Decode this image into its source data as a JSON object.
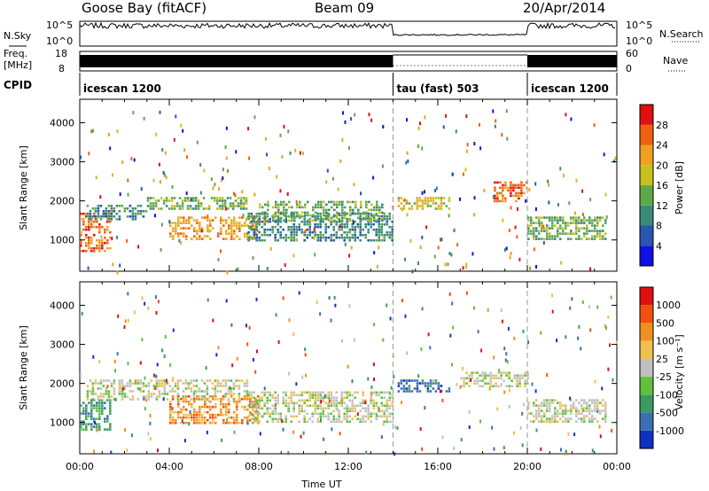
{
  "header": {
    "station": "Goose Bay (fitACF)",
    "beam": "Beam 09",
    "date": "20/Apr/2014"
  },
  "noise_panel": {
    "left_label": "N.Sky",
    "right_label": "N.Search",
    "left_ticks": [
      "10^5",
      "10^0"
    ],
    "right_ticks": [
      "10^5",
      "10^0"
    ]
  },
  "freq_panel": {
    "left_label_line1": "Freq.",
    "left_label_line2": "[MHz]",
    "left_ticks": [
      "18",
      "8"
    ],
    "right_label": "Nave",
    "right_ticks": [
      "60",
      "0"
    ]
  },
  "cpid_panel": {
    "label": "CPID",
    "segments": [
      {
        "text": "icescan 1200",
        "start_h": 0,
        "end_h": 14
      },
      {
        "text": "tau (fast) 503",
        "start_h": 14,
        "end_h": 20
      },
      {
        "text": "icescan 1200",
        "start_h": 20,
        "end_h": 24
      }
    ]
  },
  "chart_data": [
    {
      "type": "heatmap",
      "name": "power",
      "ylabel": "Slant Range [km]",
      "yticks": [
        "1000",
        "2000",
        "3000",
        "4000"
      ],
      "ylim": [
        200,
        4600
      ],
      "xlim": [
        0,
        24
      ],
      "colorbar": {
        "label": "Power [dB]",
        "ticks": [
          "4",
          "8",
          "12",
          "16",
          "20",
          "24",
          "28"
        ],
        "colors": [
          "#1010e0",
          "#2a55b0",
          "#3a8a7a",
          "#5fa84a",
          "#c8c020",
          "#f0a020",
          "#f06010",
          "#e01010"
        ]
      },
      "bands": [
        {
          "x": [
            0.0,
            1.4
          ],
          "y": [
            700,
            1700
          ],
          "level": 6
        },
        {
          "x": [
            0.3,
            3.0
          ],
          "y": [
            1500,
            1900
          ],
          "level": 2
        },
        {
          "x": [
            3.0,
            7.5
          ],
          "y": [
            1800,
            2100
          ],
          "level": 3
        },
        {
          "x": [
            4.0,
            8.0
          ],
          "y": [
            1000,
            1600
          ],
          "level": 5
        },
        {
          "x": [
            7.5,
            14.0
          ],
          "y": [
            1000,
            1700
          ],
          "level": 2
        },
        {
          "x": [
            8.0,
            13.5
          ],
          "y": [
            1500,
            2000
          ],
          "level": 3
        },
        {
          "x": [
            14.2,
            16.5
          ],
          "y": [
            1800,
            2100
          ],
          "level": 4
        },
        {
          "x": [
            18.5,
            20.0
          ],
          "y": [
            2000,
            2500
          ],
          "level": 6
        },
        {
          "x": [
            20.0,
            23.5
          ],
          "y": [
            1000,
            1600
          ],
          "level": 3
        }
      ]
    },
    {
      "type": "heatmap",
      "name": "velocity",
      "ylabel": "Slant Range [km]",
      "yticks": [
        "1000",
        "2000",
        "3000",
        "4000"
      ],
      "ylim": [
        200,
        4600
      ],
      "xlim": [
        0,
        24
      ],
      "xlabel": "Time UT",
      "xticks": [
        "00:00",
        "04:00",
        "08:00",
        "12:00",
        "16:00",
        "20:00",
        "00:00"
      ],
      "colorbar": {
        "label": "Velocity [m s⁻¹]",
        "ticks": [
          "1000",
          "500",
          "100",
          "25",
          "-25",
          "-100",
          "-500",
          "-1000"
        ],
        "colors": [
          "#1030c0",
          "#3a70b0",
          "#3a9a60",
          "#60c040",
          "#c0c0c0",
          "#f0c050",
          "#f09020",
          "#f05010",
          "#e01010"
        ]
      },
      "bands": [
        {
          "x": [
            0.0,
            1.4
          ],
          "y": [
            800,
            1600
          ],
          "level": 2
        },
        {
          "x": [
            0.3,
            7.5
          ],
          "y": [
            1600,
            2100
          ],
          "level": 4
        },
        {
          "x": [
            4.0,
            8.0
          ],
          "y": [
            1000,
            1700
          ],
          "level": 6
        },
        {
          "x": [
            7.5,
            14.0
          ],
          "y": [
            1000,
            1800
          ],
          "level": 4
        },
        {
          "x": [
            14.2,
            16.5
          ],
          "y": [
            1800,
            2100
          ],
          "level": 1
        },
        {
          "x": [
            17.0,
            20.0
          ],
          "y": [
            1900,
            2300
          ],
          "level": 4
        },
        {
          "x": [
            20.0,
            23.5
          ],
          "y": [
            1000,
            1600
          ],
          "level": 4
        }
      ]
    }
  ]
}
